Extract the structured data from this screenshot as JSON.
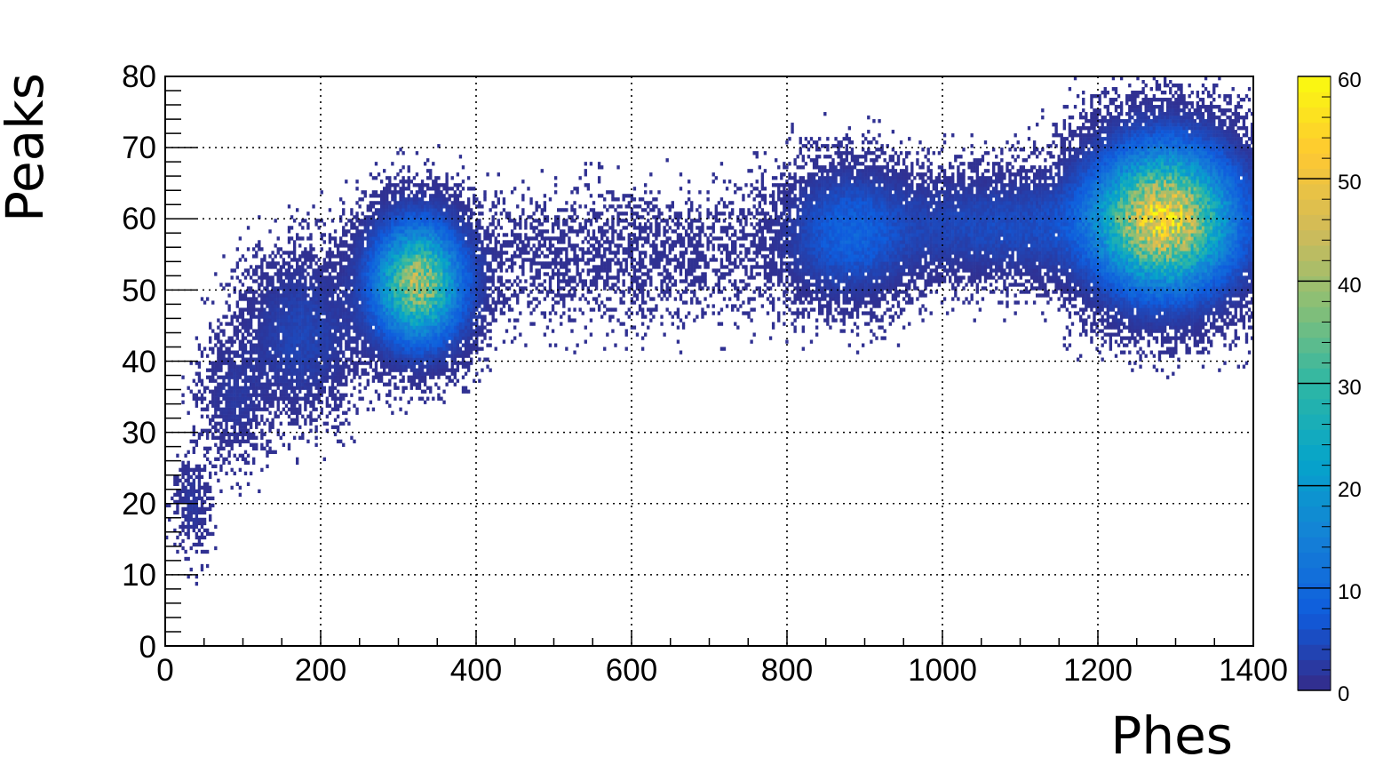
{
  "chart_data": {
    "type": "heatmap",
    "title": "",
    "xlabel": "Phes",
    "ylabel": "Peaks",
    "xlim": [
      0,
      1400
    ],
    "ylim": [
      0,
      80
    ],
    "x_ticks": [
      "0",
      "200",
      "400",
      "600",
      "800",
      "1000",
      "1200",
      "1400"
    ],
    "y_ticks": [
      "0",
      "10",
      "20",
      "30",
      "40",
      "50",
      "60",
      "70",
      "80"
    ],
    "colorbar": {
      "range": [
        0,
        60
      ],
      "ticks": [
        "0",
        "10",
        "20",
        "30",
        "40",
        "50",
        "60"
      ]
    },
    "grid": true,
    "clusters": [
      {
        "x_center": 35,
        "y_center": 20,
        "x_width": 12,
        "y_width": 4,
        "peak_count": 2
      },
      {
        "x_center": 90,
        "y_center": 35,
        "x_width": 25,
        "y_width": 5,
        "peak_count": 2
      },
      {
        "x_center": 175,
        "y_center": 44,
        "x_width": 40,
        "y_width": 6,
        "peak_count": 4
      },
      {
        "x_center": 325,
        "y_center": 51,
        "x_width": 35,
        "y_width": 5,
        "peak_count": 40
      },
      {
        "x_center": 600,
        "y_center": 55,
        "x_width": 150,
        "y_width": 5,
        "peak_count": 1
      },
      {
        "x_center": 880,
        "y_center": 58,
        "x_width": 45,
        "y_width": 5,
        "peak_count": 8
      },
      {
        "x_center": 1080,
        "y_center": 59,
        "x_width": 110,
        "y_width": 4,
        "peak_count": 5
      },
      {
        "x_center": 1285,
        "y_center": 60,
        "x_width": 55,
        "y_width": 6,
        "peak_count": 50
      }
    ],
    "palette": [
      "#352a87",
      "#0f5cdd",
      "#1481d6",
      "#06a4ca",
      "#2eb7a4",
      "#87bf77",
      "#d1bb59",
      "#fec832",
      "#f9fb0e"
    ]
  }
}
